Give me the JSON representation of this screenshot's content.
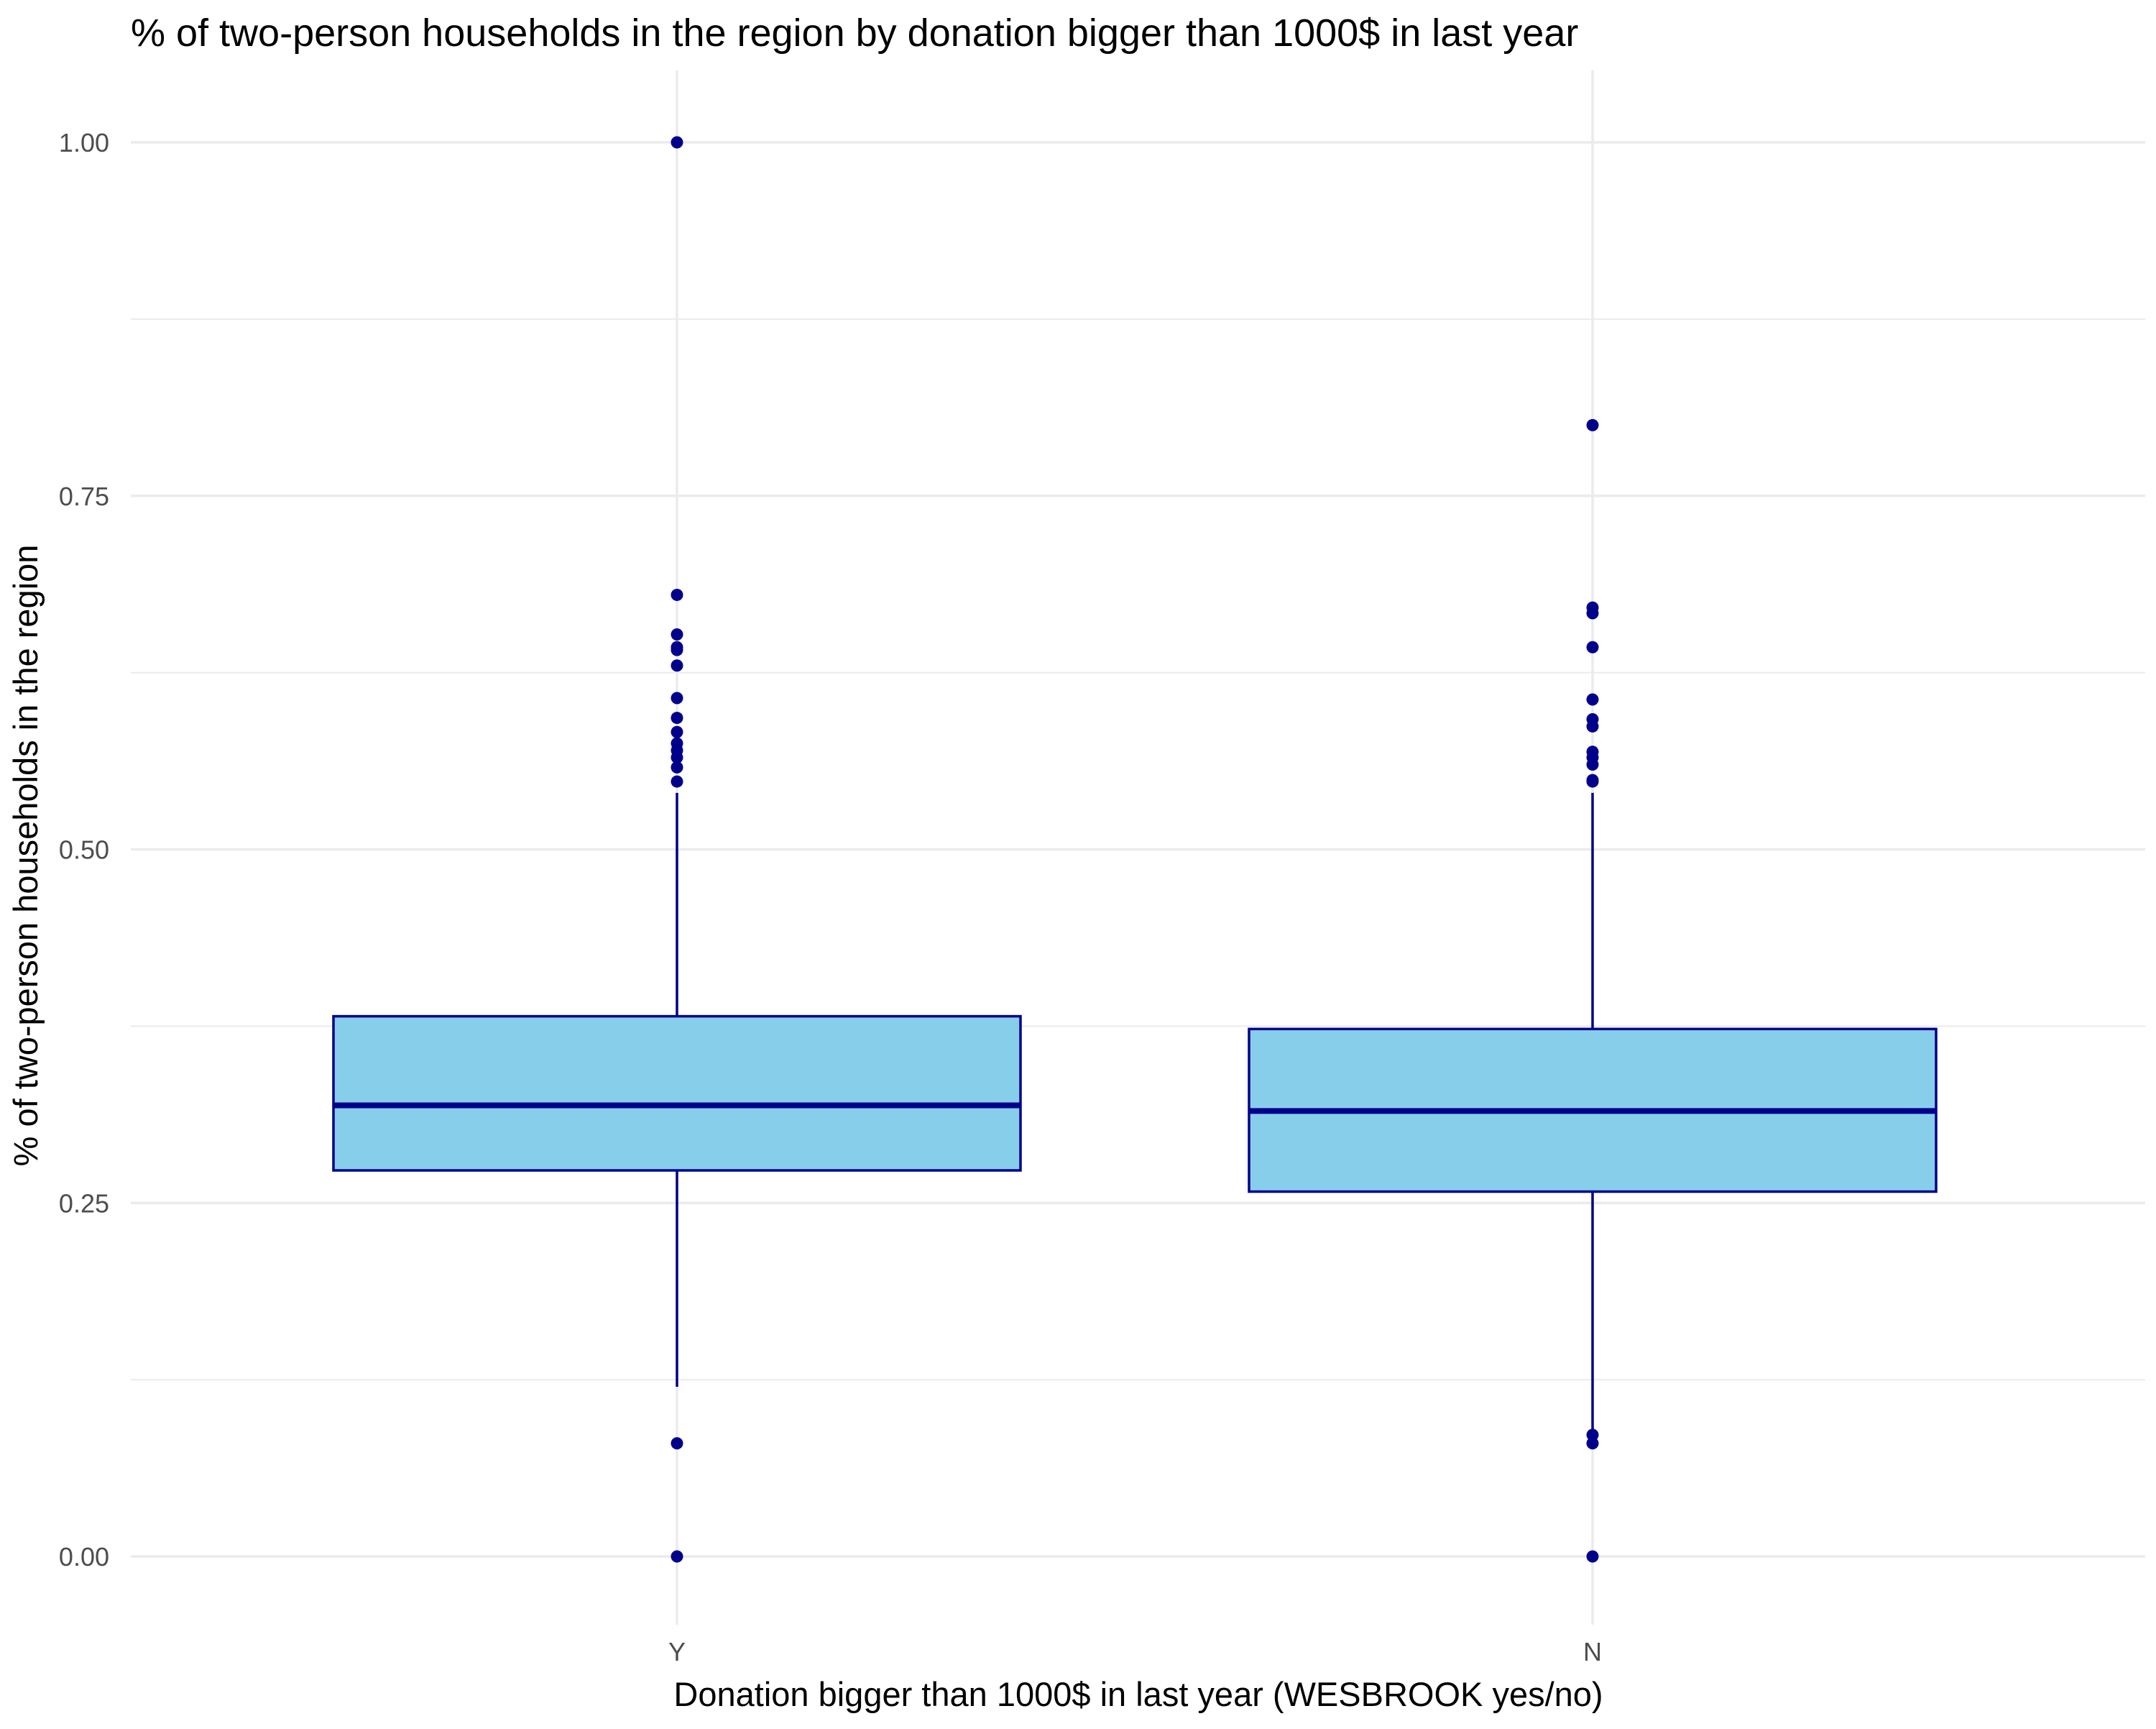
{
  "chart_data": {
    "type": "boxplot",
    "title": "% of two-person households in the region by donation bigger than 1000$ in last year",
    "xlabel": "Donation bigger than 1000$ in last year (WESBROOK yes/no)",
    "ylabel": "% of two-person households in the region",
    "ylim": [
      -0.1,
      1.05
    ],
    "y_ticks": [
      0.0,
      0.25,
      0.5,
      0.75,
      1.0
    ],
    "y_tick_labels": [
      "0.00",
      "0.25",
      "0.50",
      "0.75",
      "1.00"
    ],
    "y_minor_ticks": [
      0.125,
      0.375,
      0.625,
      0.875
    ],
    "categories": [
      "Y",
      "N"
    ],
    "grid": true,
    "legend": "none",
    "colors": {
      "box_fill": "#87ceeb",
      "box_line": "#00008b",
      "grid": "#ebebeb",
      "outlier": "#00008b"
    },
    "boxes": [
      {
        "category": "Y",
        "whisker_low": 0.12,
        "q1": 0.273,
        "median": 0.319,
        "q3": 0.382,
        "whisker_high": 0.54,
        "outliers": [
          1.0,
          0.68,
          0.652,
          0.643,
          0.641,
          0.63,
          0.607,
          0.593,
          0.583,
          0.575,
          0.57,
          0.565,
          0.558,
          0.548,
          0.08,
          0.0
        ]
      },
      {
        "category": "N",
        "whisker_low": 0.09,
        "q1": 0.258,
        "median": 0.315,
        "q3": 0.373,
        "whisker_high": 0.54,
        "outliers": [
          0.8,
          0.671,
          0.667,
          0.643,
          0.606,
          0.592,
          0.587,
          0.569,
          0.565,
          0.56,
          0.549,
          0.548,
          0.086,
          0.08,
          0.0
        ]
      }
    ]
  }
}
